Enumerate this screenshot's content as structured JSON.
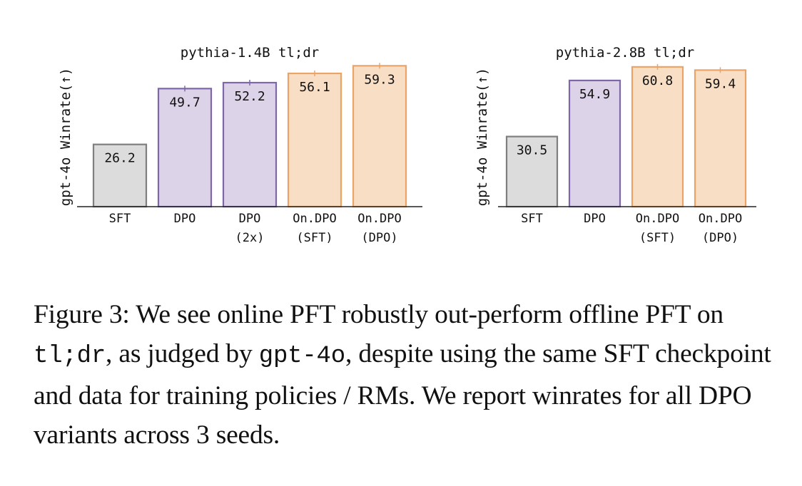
{
  "chart_data": [
    {
      "type": "bar",
      "title": "pythia-1.4B tl;dr",
      "ylabel": "gpt-4o Winrate(↑)",
      "categories": [
        [
          "SFT"
        ],
        [
          "DPO"
        ],
        [
          "DPO",
          "(2x)"
        ],
        [
          "On.DPO",
          "(SFT)"
        ],
        [
          "On.DPO",
          "(DPO)"
        ]
      ],
      "values": [
        26.2,
        49.7,
        52.2,
        56.1,
        59.3
      ],
      "value_labels": [
        "26.2",
        "49.7",
        "52.2",
        "56.1",
        "59.3"
      ],
      "groups": [
        "SFT",
        "offline",
        "offline",
        "online",
        "online"
      ],
      "error_bars": [
        false,
        true,
        true,
        true,
        true
      ],
      "ylim": [
        0,
        60
      ],
      "grid": false
    },
    {
      "type": "bar",
      "title": "pythia-2.8B tl;dr",
      "ylabel": "gpt-4o Winrate(↑)",
      "categories": [
        [
          "SFT"
        ],
        [
          "DPO"
        ],
        [
          "On.DPO",
          "(SFT)"
        ],
        [
          "On.DPO",
          "(DPO)"
        ]
      ],
      "values": [
        30.5,
        54.9,
        60.8,
        59.4
      ],
      "value_labels": [
        "30.5",
        "54.9",
        "60.8",
        "59.4"
      ],
      "groups": [
        "SFT",
        "offline",
        "online",
        "online"
      ],
      "error_bars": [
        false,
        false,
        true,
        true
      ],
      "ylim": [
        0,
        62
      ],
      "grid": false
    }
  ],
  "colors": {
    "SFT": {
      "fill": "#dcdcdc",
      "stroke": "#7f7f7f"
    },
    "offline": {
      "fill": "#dcd3e8",
      "stroke": "#7d67a8"
    },
    "online": {
      "fill": "#f8dec4",
      "stroke": "#eba468"
    },
    "axis": "#222222",
    "text": "#111111"
  },
  "caption": {
    "label": "Figure 3:",
    "s1": "We see online PFT robustly out-perform offline PFT on",
    "code1": "tl;dr",
    "s2": ", as judged by",
    "code2": "gpt-4o",
    "s3": ", despite using the same SFT checkpoint and data for training policies / RMs. We report winrates for all DPO variants across 3 seeds."
  }
}
